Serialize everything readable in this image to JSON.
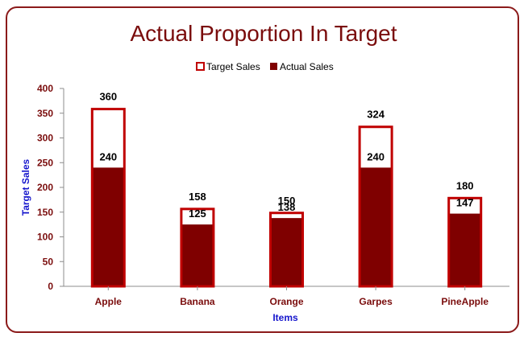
{
  "chart_data": {
    "type": "bar",
    "title": "Actual Proportion In Target",
    "xlabel": "Items",
    "ylabel": "Target Sales",
    "categories": [
      "Apple",
      "Banana",
      "Orange",
      "Garpes",
      "PineApple"
    ],
    "series": [
      {
        "name": "Target Sales",
        "values": [
          360,
          158,
          150,
          324,
          180
        ],
        "color": "#ffffff",
        "border": "#c00000"
      },
      {
        "name": "Actual Sales",
        "values": [
          240,
          125,
          138,
          240,
          147
        ],
        "color": "#7f0000"
      }
    ],
    "ylim": [
      0,
      400
    ],
    "yticks": [
      0,
      50,
      100,
      150,
      200,
      250,
      300,
      350,
      400
    ],
    "grid": false,
    "legend": "top"
  }
}
